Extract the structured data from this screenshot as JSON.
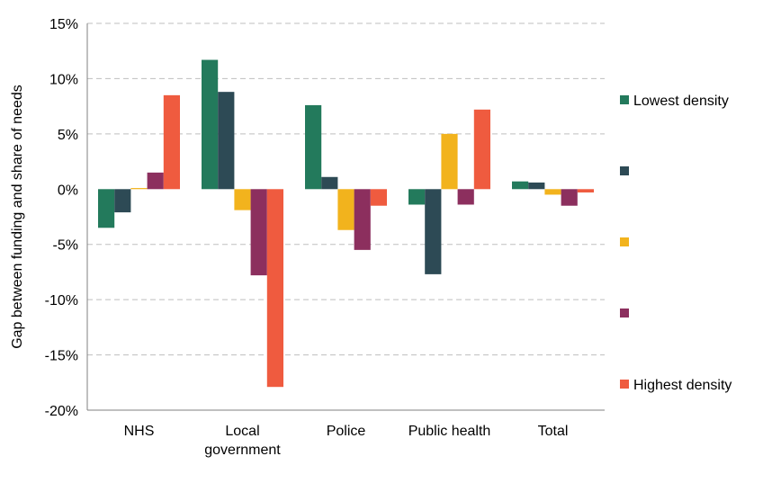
{
  "chart_data": {
    "type": "bar",
    "categories": [
      [
        "NHS"
      ],
      [
        "Local",
        "government"
      ],
      [
        "Police"
      ],
      [
        "Public health"
      ],
      [
        "Total"
      ]
    ],
    "ylabel": "Gap between funding and share of needs",
    "ylim": [
      -20,
      15
    ],
    "yticks": [
      15,
      10,
      5,
      0,
      -5,
      -10,
      -15,
      -20
    ],
    "ytick_labels": [
      "15%",
      "10%",
      "5%",
      "0%",
      "-5%",
      "-10%",
      "-15%",
      "-20%"
    ],
    "grid": "horizontal dashed",
    "legend_placement": "right",
    "series": [
      {
        "name": "Lowest density",
        "color": "#237A5C",
        "values": [
          -3.5,
          11.7,
          7.6,
          -1.4,
          0.7
        ]
      },
      {
        "legend_label": "",
        "color": "#2D4A55",
        "values": [
          -2.1,
          8.8,
          1.1,
          -7.7,
          0.6
        ]
      },
      {
        "legend_label": "",
        "color": "#F2B31D",
        "values": [
          0.1,
          -1.9,
          -3.7,
          5.0,
          -0.5
        ]
      },
      {
        "legend_label": "",
        "color": "#8C2F5E",
        "values": [
          1.5,
          -7.8,
          -5.5,
          -1.4,
          -1.5
        ]
      },
      {
        "name": "Highest density",
        "color": "#EF5B3F",
        "values": [
          8.5,
          -17.9,
          -1.5,
          7.2,
          -0.3
        ]
      }
    ]
  }
}
